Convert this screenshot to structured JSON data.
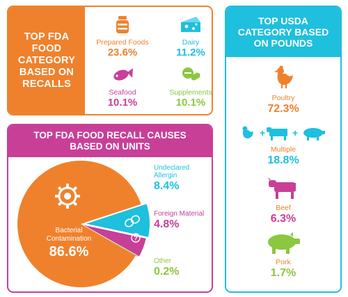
{
  "colors": {
    "orange": "#f0812c",
    "blue": "#1fbfde",
    "magenta": "#c83f98",
    "green": "#8dc63f",
    "white": "#ffffff"
  },
  "fda_category": {
    "title": "TOP FDA FOOD CATEGORY BASED ON RECALLS",
    "items": [
      {
        "label": "Prepared Foods",
        "value": "23.6%",
        "icon": "jar-icon",
        "color": "#f0812c"
      },
      {
        "label": "Dairy",
        "value": "11.2%",
        "icon": "cheese-icon",
        "color": "#1fbfde"
      },
      {
        "label": "Seafood",
        "value": "10.1%",
        "icon": "fish-icon",
        "color": "#c83f98"
      },
      {
        "label": "Supplements",
        "value": "10.1%",
        "icon": "pill-icon",
        "color": "#8dc63f"
      }
    ]
  },
  "usda_category": {
    "title": "TOP USDA CATEGORY BASED ON POUNDS",
    "items": [
      {
        "label": "Poultry",
        "value": "72.3%",
        "icon": "chicken-icon",
        "value_color": "#f0812c"
      },
      {
        "label": "Multiple",
        "value": "18.8%",
        "icon": "chicken-cow-pig-icon",
        "value_color": "#1fbfde"
      },
      {
        "label": "Beef",
        "value": "6.3%",
        "icon": "cow-icon",
        "value_color": "#c83f98"
      },
      {
        "label": "Pork",
        "value": "1.7%",
        "icon": "pig-icon",
        "value_color": "#8dc63f"
      }
    ]
  },
  "chart_data": {
    "type": "pie",
    "title": "TOP FDA FOOD RECALL CAUSES BASED ON UNITS",
    "categories": [
      "Bacterial Contamination",
      "Undeclared Allergin",
      "Foreign Material",
      "Other"
    ],
    "values": [
      86.6,
      8.4,
      4.8,
      0.2
    ],
    "labels": [
      "86.6%",
      "8.4%",
      "4.8%",
      "0.2%"
    ],
    "colors": [
      "#f0812c",
      "#1fbfde",
      "#c83f98",
      "#8dc63f"
    ],
    "legend": [
      {
        "label": "Undeclared Allergin",
        "value": "8.4%",
        "color": "#1fbfde"
      },
      {
        "label": "Foreign Material",
        "value": "4.8%",
        "color": "#c83f98"
      },
      {
        "label": "Other",
        "value": "0.2%",
        "color": "#8dc63f"
      }
    ]
  }
}
